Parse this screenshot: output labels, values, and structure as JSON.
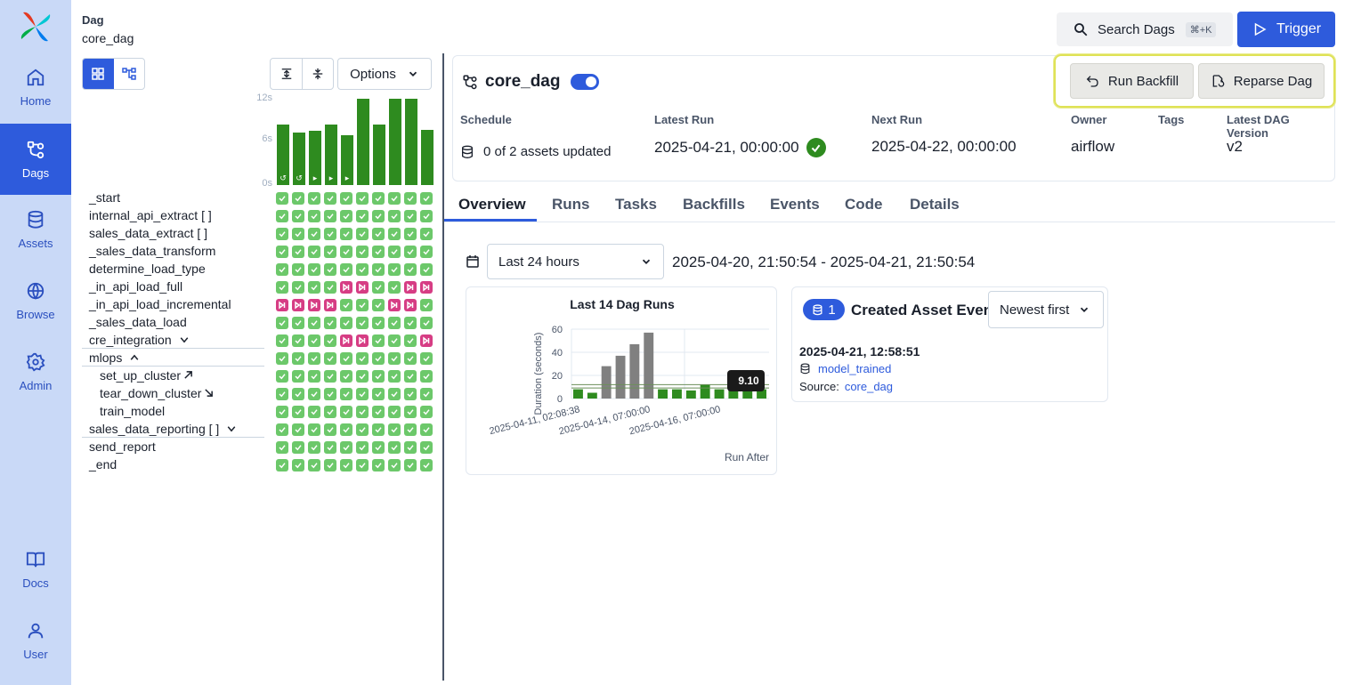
{
  "nav": {
    "items": [
      {
        "label": "Home",
        "icon": "home-icon"
      },
      {
        "label": "Dags",
        "icon": "dags-icon",
        "active": true
      },
      {
        "label": "Assets",
        "icon": "database-icon"
      },
      {
        "label": "Browse",
        "icon": "globe-icon"
      },
      {
        "label": "Admin",
        "icon": "gear-icon"
      }
    ],
    "bottom": [
      {
        "label": "Docs",
        "icon": "book-icon"
      },
      {
        "label": "User",
        "icon": "user-icon"
      }
    ]
  },
  "header": {
    "crumb_label": "Dag",
    "crumb_value": "core_dag",
    "search_label": "Search Dags",
    "search_shortcut": "⌘+K",
    "trigger_label": "Trigger"
  },
  "grid": {
    "options_label": "Options",
    "y_ticks": [
      "12s",
      "6s",
      "0s"
    ],
    "bar_levels": [
      0.72,
      0.63,
      0.65,
      0.72,
      0.6,
      1.03,
      0.72,
      1.03,
      1.03,
      0.66
    ],
    "bar_icons": [
      "↺",
      "↺",
      "▸",
      "▸",
      "▸",
      "",
      "",
      "",
      "",
      ""
    ],
    "tasks": [
      {
        "label": "_start"
      },
      {
        "label": "internal_api_extract [ ]"
      },
      {
        "label": "sales_data_extract [ ]"
      },
      {
        "label": "_sales_data_transform"
      },
      {
        "label": "determine_load_type"
      },
      {
        "label": "_in_api_load_full"
      },
      {
        "label": "_in_api_load_incremental"
      },
      {
        "label": "_sales_data_load"
      },
      {
        "label": "cre_integration",
        "group": "collapsed"
      },
      {
        "label": "mlops",
        "group": "expanded"
      },
      {
        "label": "set_up_cluster",
        "indent": true,
        "arrow": "setup"
      },
      {
        "label": "tear_down_cluster",
        "indent": true,
        "arrow": "teardown"
      },
      {
        "label": "train_model",
        "indent": true
      },
      {
        "label": "sales_data_reporting [ ]",
        "group": "collapsed"
      },
      {
        "label": "send_report"
      },
      {
        "label": "_end"
      }
    ],
    "status_rows": [
      "ssssssssss",
      "ssssssssss",
      "ssssssssss",
      "ssssssssss",
      "ssssssssss",
      "sssskkssk k",
      "kkkkssskks",
      "ssssssssss",
      "sssskksssk",
      "ssssssssss",
      "ssssssssss",
      "ssssssssss",
      "ssssssssss",
      "ssssssssss",
      "ssssssssss",
      "ssssssssss"
    ]
  },
  "dag": {
    "name": "core_dag",
    "backfill_label": "Run Backfill",
    "reparse_label": "Reparse Dag",
    "schedule_label": "Schedule",
    "schedule_value": "0 of 2 assets updated",
    "latest_run_label": "Latest Run",
    "latest_run_value": "2025-04-21, 00:00:00",
    "next_run_label": "Next Run",
    "next_run_value": "2025-04-22, 00:00:00",
    "owner_label": "Owner",
    "owner_value": "airflow",
    "tags_label": "Tags",
    "version_label": "Latest DAG Version",
    "version_value": "v2"
  },
  "tabs": [
    "Overview",
    "Runs",
    "Tasks",
    "Backfills",
    "Events",
    "Code",
    "Details"
  ],
  "overview": {
    "range_label": "Last 24 hours",
    "range_text": "2025-04-20, 21:50:54 - 2025-04-21, 21:50:54"
  },
  "chart_data": {
    "type": "bar",
    "title": "Last 14 Dag Runs",
    "ylabel": "Duration (seconds)",
    "xlabel": "Run After",
    "ylim": [
      0,
      60
    ],
    "y_ticks": [
      0,
      20,
      40,
      60
    ],
    "x_tick_labels": [
      "2025-04-11, 02:08:38",
      "2025-04-14, 07:00:00",
      "2025-04-16, 07:00:00"
    ],
    "values": [
      8,
      5,
      28,
      37,
      47,
      57,
      8,
      8,
      7,
      12,
      8,
      9.1,
      8,
      8
    ],
    "statuses": [
      "success",
      "success",
      "queued",
      "queued",
      "queued",
      "queued",
      "success",
      "success",
      "success",
      "success",
      "success",
      "success",
      "success",
      "success"
    ],
    "reference_lines": [
      9.1,
      12
    ],
    "tooltip": "9.10"
  },
  "events": {
    "count": "1",
    "title": "Created Asset Event",
    "sort_label": "Newest first",
    "time": "2025-04-21, 12:58:51",
    "asset": "model_trained",
    "source_label": "Source:",
    "source_value": "core_dag"
  },
  "colors": {
    "accent": "#2e5bdc",
    "nav_bg": "#c9d9f7",
    "success": "#2e8b1f",
    "success_cell": "#6cc86a",
    "skipped_cell": "#d63d84",
    "queued_bar": "#808080",
    "highlight": "#dfe256"
  }
}
